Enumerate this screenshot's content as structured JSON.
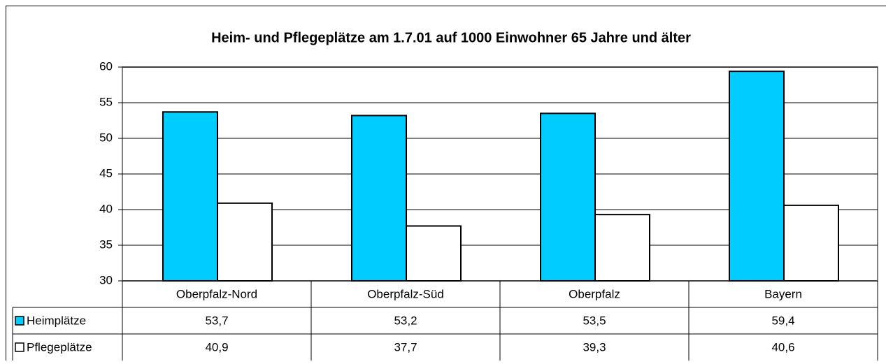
{
  "chart_data": {
    "type": "bar",
    "title": "Heim- und Pflegeplätze am 1.7.01 auf 1000 Einwohner 65 Jahre und älter",
    "categories": [
      "Oberpfalz-Nord",
      "Oberpfalz-Süd",
      "Oberpfalz",
      "Bayern"
    ],
    "series": [
      {
        "name": "Heimplätze",
        "color": "#00ccff",
        "values": [
          53.7,
          53.2,
          53.5,
          59.4
        ],
        "value_labels": [
          "53,7",
          "53,2",
          "53,5",
          "59,4"
        ]
      },
      {
        "name": "Pflegeplätze",
        "color": "#ffffff",
        "values": [
          40.9,
          37.7,
          39.3,
          40.6
        ],
        "value_labels": [
          "40,9",
          "37,7",
          "39,3",
          "40,6"
        ]
      }
    ],
    "ylim": [
      30,
      60
    ],
    "yticks": [
      30,
      35,
      40,
      45,
      50,
      55,
      60
    ],
    "grid": true
  }
}
